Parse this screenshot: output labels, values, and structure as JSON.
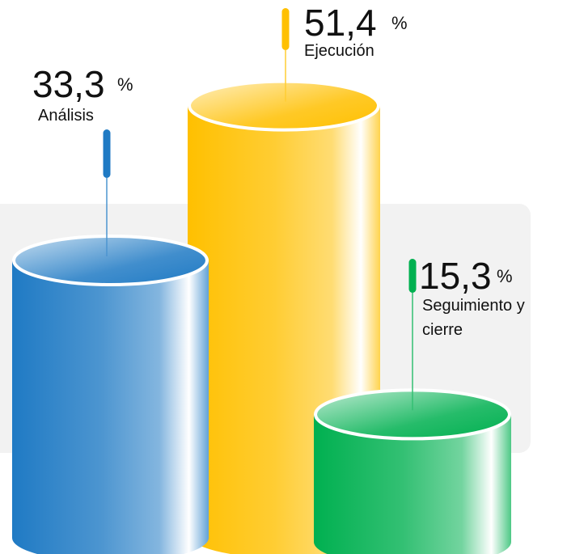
{
  "chart_data": {
    "type": "cylinder",
    "categories": [
      "Análisis",
      "Ejecución",
      "Seguimiento y cierre"
    ],
    "values": [
      33.3,
      51.4,
      15.3
    ],
    "value_labels": [
      "33,3",
      "51,4",
      "15,3"
    ],
    "unit": "%",
    "colors": [
      "#1f7ac4",
      "#ffc000",
      "#00b050"
    ]
  }
}
